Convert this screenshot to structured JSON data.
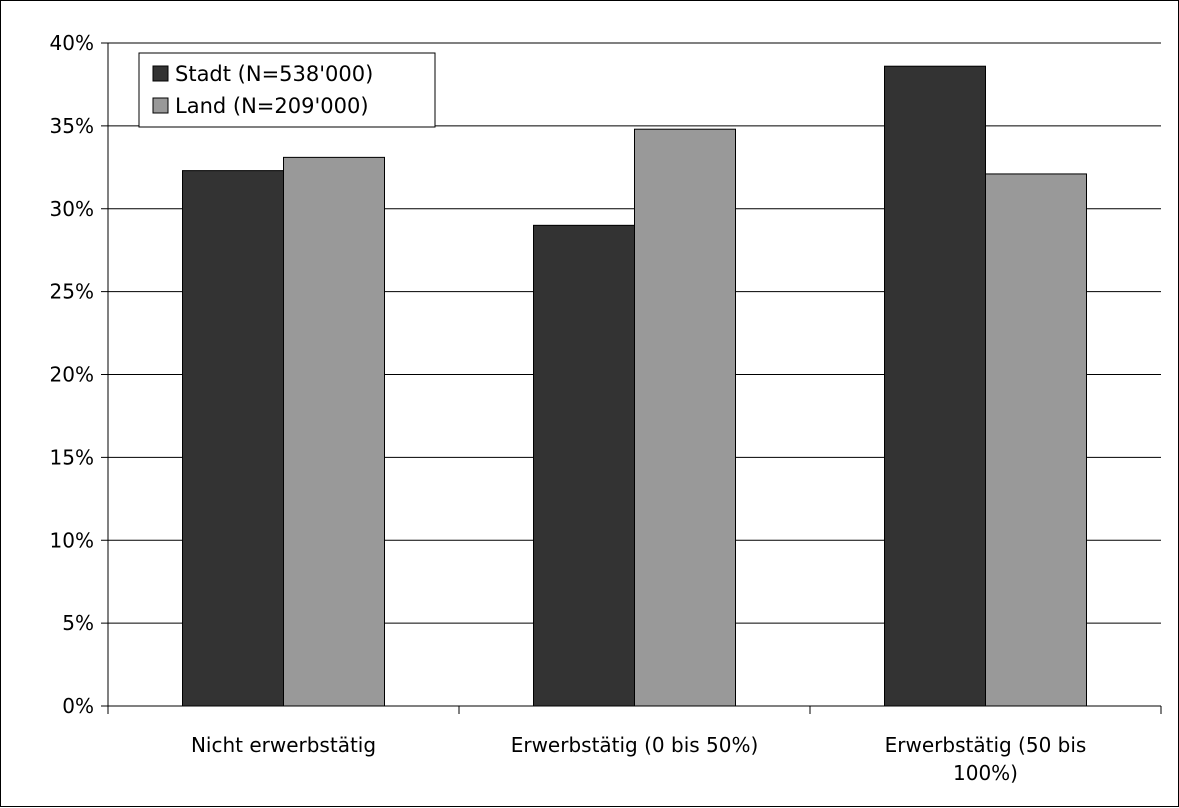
{
  "chart_data": {
    "type": "bar",
    "categories": [
      [
        "Nicht erwerbstätig"
      ],
      [
        "Erwerbstätig (0 bis 50%)"
      ],
      [
        "Erwerbstätig (50 bis",
        "100%)"
      ]
    ],
    "series": [
      {
        "name": "Stadt (N=538'000)",
        "values": [
          32.3,
          29.0,
          38.6
        ],
        "color": "#333333"
      },
      {
        "name": "Land (N=209'000)",
        "values": [
          33.1,
          34.8,
          32.1
        ],
        "color": "#999999"
      }
    ],
    "ylim": [
      0,
      40
    ],
    "yticks": [
      "0%",
      "5%",
      "10%",
      "15%",
      "20%",
      "25%",
      "30%",
      "35%",
      "40%"
    ],
    "grid": true,
    "legend_position": "top-left"
  }
}
